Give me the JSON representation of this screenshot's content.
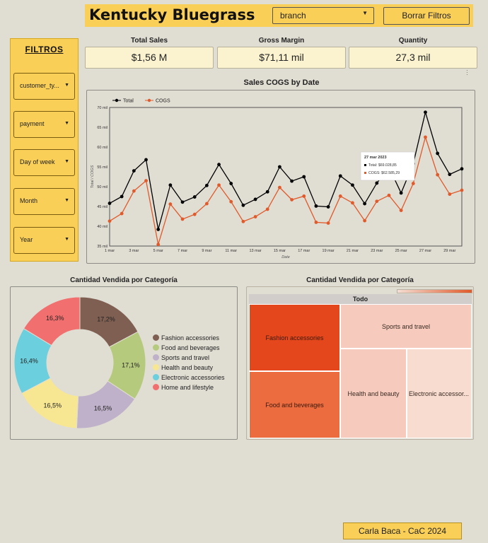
{
  "header": {
    "title": "Kentucky Bluegrass",
    "branch_label": "branch",
    "clear_label": "Borrar Filtros"
  },
  "filters": {
    "title": "FILTROS",
    "items": [
      {
        "label": "customer_ty..."
      },
      {
        "label": "payment"
      },
      {
        "label": "Day of week"
      },
      {
        "label": "Month"
      },
      {
        "label": "Year"
      }
    ]
  },
  "kpis": [
    {
      "label": "Total Sales",
      "value": "$1,56 M"
    },
    {
      "label": "Gross Margin",
      "value": "$71,11 mil"
    },
    {
      "label": "Quantity",
      "value": "27,3 mil"
    }
  ],
  "colors": {
    "accent": "#f9cf58",
    "total": "#000000",
    "cogs": "#e05a2b"
  },
  "line_chart": {
    "title": "Sales COGS by Date"
  },
  "donut": {
    "title": "Cantidad Vendida por Categoría"
  },
  "treemap": {
    "title": "Cantidad Vendida por Categoría",
    "root": "Todo",
    "cells": [
      {
        "label": "Fashion accessories"
      },
      {
        "label": "Sports and travel"
      },
      {
        "label": "Food and beverages"
      },
      {
        "label": "Health and beauty"
      },
      {
        "label": "Electronic accessor..."
      }
    ]
  },
  "footer": {
    "label": "Carla Baca - CaC 2024"
  },
  "chart_data": [
    {
      "type": "line",
      "title": "Sales COGS by Date",
      "xlabel": "Date",
      "ylabel": "Total / COGS",
      "ylim": [
        35000,
        70000
      ],
      "y_ticks": [
        "35 mil",
        "40 mil",
        "45 mil",
        "50 mil",
        "55 mil",
        "60 mil",
        "65 mil",
        "70 mil"
      ],
      "x_ticks": [
        "1 mar",
        "3 mar",
        "5 mar",
        "7 mar",
        "9 mar",
        "11 mar",
        "13 mar",
        "15 mar",
        "17 mar",
        "19 mar",
        "21 mar",
        "23 mar",
        "25 mar",
        "27 mar",
        "29 mar"
      ],
      "legend": "top-left",
      "x": [
        1,
        2,
        3,
        4,
        5,
        6,
        7,
        8,
        9,
        10,
        11,
        12,
        13,
        14,
        15,
        16,
        17,
        18,
        19,
        20,
        21,
        22,
        23,
        24,
        25,
        26,
        27,
        28,
        29,
        30
      ],
      "series": [
        {
          "name": "Total",
          "color": "#000000",
          "values": [
            45800,
            47500,
            54000,
            56800,
            39200,
            50400,
            46100,
            47400,
            50300,
            55600,
            50800,
            45300,
            46800,
            48700,
            55000,
            51400,
            52500,
            45100,
            44900,
            52700,
            50400,
            45700,
            50900,
            54900,
            48400,
            55800,
            68800,
            58400,
            53100,
            54500
          ]
        },
        {
          "name": "COGS",
          "color": "#e05a2b",
          "values": [
            41300,
            43200,
            48900,
            51500,
            35400,
            45600,
            41800,
            43000,
            45700,
            50400,
            46200,
            41200,
            42400,
            44300,
            49800,
            46700,
            47600,
            41000,
            40800,
            47600,
            45900,
            41400,
            46300,
            47800,
            44000,
            50800,
            62500,
            53000,
            48100,
            49100
          ]
        }
      ],
      "tooltip": {
        "date": "27 mar 2023",
        "total": "Total: $69.028,85",
        "cogs": "COGS: $62.585,29"
      }
    },
    {
      "type": "pie",
      "title": "Cantidad Vendida por Categoría",
      "legend": "right",
      "slices": [
        {
          "label": "Fashion accessories",
          "value": 17.2,
          "display": "17,2%",
          "color": "#7e5f52"
        },
        {
          "label": "Food and beverages",
          "value": 17.1,
          "display": "17,1%",
          "color": "#b6ca7e"
        },
        {
          "label": "Sports and travel",
          "value": 16.5,
          "display": "16,5%",
          "color": "#bfb1c9"
        },
        {
          "label": "Health and beauty",
          "value": 16.5,
          "display": "16,5%",
          "color": "#f7e793"
        },
        {
          "label": "Electronic accessories",
          "value": 16.4,
          "display": "16,4%",
          "color": "#6bcfdd"
        },
        {
          "label": "Home and lifestyle",
          "value": 16.3,
          "display": "16,3%",
          "color": "#f26f6f"
        }
      ]
    }
  ]
}
